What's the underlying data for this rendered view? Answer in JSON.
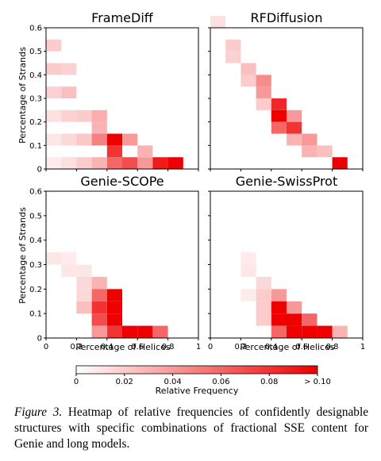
{
  "chart_data": {
    "type": "heatmap",
    "panels": [
      {
        "title": "FrameDiff",
        "cells": [
          {
            "x": 0.0,
            "y": 0.5,
            "v": 0.02
          },
          {
            "x": 0.0,
            "y": 0.4,
            "v": 0.02
          },
          {
            "x": 0.1,
            "y": 0.4,
            "v": 0.018
          },
          {
            "x": 0.0,
            "y": 0.3,
            "v": 0.018
          },
          {
            "x": 0.1,
            "y": 0.3,
            "v": 0.025
          },
          {
            "x": 0.0,
            "y": 0.2,
            "v": 0.012
          },
          {
            "x": 0.1,
            "y": 0.2,
            "v": 0.018
          },
          {
            "x": 0.2,
            "y": 0.2,
            "v": 0.02
          },
          {
            "x": 0.3,
            "y": 0.2,
            "v": 0.032
          },
          {
            "x": 0.0,
            "y": 0.1,
            "v": 0.01
          },
          {
            "x": 0.1,
            "y": 0.1,
            "v": 0.015
          },
          {
            "x": 0.2,
            "y": 0.1,
            "v": 0.022
          },
          {
            "x": 0.3,
            "y": 0.1,
            "v": 0.05
          },
          {
            "x": 0.4,
            "y": 0.1,
            "v": 0.1
          },
          {
            "x": 0.5,
            "y": 0.1,
            "v": 0.04
          },
          {
            "x": 0.0,
            "y": 0.0,
            "v": 0.008
          },
          {
            "x": 0.1,
            "y": 0.0,
            "v": 0.012
          },
          {
            "x": 0.2,
            "y": 0.0,
            "v": 0.02
          },
          {
            "x": 0.3,
            "y": 0.0,
            "v": 0.03
          },
          {
            "x": 0.4,
            "y": 0.0,
            "v": 0.06
          },
          {
            "x": 0.5,
            "y": 0.0,
            "v": 0.07
          },
          {
            "x": 0.6,
            "y": 0.0,
            "v": 0.04
          },
          {
            "x": 0.3,
            "y": 0.15,
            "v": 0.03
          },
          {
            "x": 0.4,
            "y": 0.05,
            "v": 0.08
          },
          {
            "x": 0.6,
            "y": 0.05,
            "v": 0.03
          },
          {
            "x": 0.7,
            "y": 0.0,
            "v": 0.09
          },
          {
            "x": 0.8,
            "y": 0.0,
            "v": 0.1
          }
        ]
      },
      {
        "title": "RFDiffusion",
        "cells": [
          {
            "x": 0.0,
            "y": 0.6,
            "v": 0.012
          },
          {
            "x": 0.1,
            "y": 0.5,
            "v": 0.02
          },
          {
            "x": 0.1,
            "y": 0.45,
            "v": 0.018
          },
          {
            "x": 0.2,
            "y": 0.4,
            "v": 0.025
          },
          {
            "x": 0.2,
            "y": 0.35,
            "v": 0.02
          },
          {
            "x": 0.3,
            "y": 0.35,
            "v": 0.045
          },
          {
            "x": 0.3,
            "y": 0.3,
            "v": 0.04
          },
          {
            "x": 0.3,
            "y": 0.25,
            "v": 0.02
          },
          {
            "x": 0.4,
            "y": 0.25,
            "v": 0.085
          },
          {
            "x": 0.4,
            "y": 0.2,
            "v": 0.1
          },
          {
            "x": 0.4,
            "y": 0.15,
            "v": 0.06
          },
          {
            "x": 0.5,
            "y": 0.2,
            "v": 0.04
          },
          {
            "x": 0.5,
            "y": 0.15,
            "v": 0.08
          },
          {
            "x": 0.5,
            "y": 0.1,
            "v": 0.03
          },
          {
            "x": 0.6,
            "y": 0.1,
            "v": 0.04
          },
          {
            "x": 0.6,
            "y": 0.05,
            "v": 0.03
          },
          {
            "x": 0.7,
            "y": 0.05,
            "v": 0.025
          },
          {
            "x": 0.8,
            "y": 0.0,
            "v": 0.1
          }
        ]
      },
      {
        "title": "Genie-SCOPe",
        "cells": [
          {
            "x": 0.0,
            "y": 0.3,
            "v": 0.01
          },
          {
            "x": 0.1,
            "y": 0.3,
            "v": 0.008
          },
          {
            "x": 0.1,
            "y": 0.25,
            "v": 0.01
          },
          {
            "x": 0.2,
            "y": 0.25,
            "v": 0.01
          },
          {
            "x": 0.2,
            "y": 0.2,
            "v": 0.015
          },
          {
            "x": 0.3,
            "y": 0.2,
            "v": 0.03
          },
          {
            "x": 0.3,
            "y": 0.15,
            "v": 0.06
          },
          {
            "x": 0.3,
            "y": 0.1,
            "v": 0.08
          },
          {
            "x": 0.3,
            "y": 0.05,
            "v": 0.07
          },
          {
            "x": 0.4,
            "y": 0.15,
            "v": 0.1
          },
          {
            "x": 0.4,
            "y": 0.1,
            "v": 0.1
          },
          {
            "x": 0.4,
            "y": 0.05,
            "v": 0.1
          },
          {
            "x": 0.4,
            "y": 0.0,
            "v": 0.08
          },
          {
            "x": 0.3,
            "y": 0.0,
            "v": 0.04
          },
          {
            "x": 0.5,
            "y": 0.0,
            "v": 0.1
          },
          {
            "x": 0.6,
            "y": 0.0,
            "v": 0.1
          },
          {
            "x": 0.7,
            "y": 0.0,
            "v": 0.06
          },
          {
            "x": 0.2,
            "y": 0.1,
            "v": 0.025
          },
          {
            "x": 0.2,
            "y": 0.15,
            "v": 0.015
          }
        ]
      },
      {
        "title": "Genie-SwissProt",
        "cells": [
          {
            "x": 0.2,
            "y": 0.3,
            "v": 0.008
          },
          {
            "x": 0.2,
            "y": 0.25,
            "v": 0.01
          },
          {
            "x": 0.2,
            "y": 0.15,
            "v": 0.008
          },
          {
            "x": 0.3,
            "y": 0.2,
            "v": 0.015
          },
          {
            "x": 0.3,
            "y": 0.15,
            "v": 0.02
          },
          {
            "x": 0.3,
            "y": 0.1,
            "v": 0.02
          },
          {
            "x": 0.4,
            "y": 0.15,
            "v": 0.04
          },
          {
            "x": 0.4,
            "y": 0.1,
            "v": 0.1
          },
          {
            "x": 0.4,
            "y": 0.05,
            "v": 0.1
          },
          {
            "x": 0.4,
            "y": 0.0,
            "v": 0.06
          },
          {
            "x": 0.5,
            "y": 0.05,
            "v": 0.1
          },
          {
            "x": 0.5,
            "y": 0.0,
            "v": 0.1
          },
          {
            "x": 0.5,
            "y": 0.1,
            "v": 0.04
          },
          {
            "x": 0.6,
            "y": 0.0,
            "v": 0.1
          },
          {
            "x": 0.6,
            "y": 0.05,
            "v": 0.06
          },
          {
            "x": 0.7,
            "y": 0.0,
            "v": 0.1
          },
          {
            "x": 0.8,
            "y": 0.0,
            "v": 0.03
          },
          {
            "x": 0.3,
            "y": 0.05,
            "v": 0.02
          }
        ]
      }
    ],
    "x_ticks": [
      "0",
      "0.2",
      "0.4",
      "0.6",
      "0.8",
      "1"
    ],
    "y_ticks": [
      "0",
      "0.1",
      "0.2",
      "0.3",
      "0.4",
      "0.5",
      "0.6"
    ],
    "xlabel": "Percentage of Helices",
    "ylabel": "Percentage of Strands",
    "xlim": [
      0,
      1
    ],
    "ylim": [
      0,
      0.6
    ],
    "cell_size_x": 0.1,
    "cell_size_y": 0.05,
    "colorbar": {
      "label": "Relative Frequency",
      "ticks": [
        "0",
        "0.02",
        "0.04",
        "0.06",
        "0.08",
        "> 0.10"
      ],
      "range": [
        0,
        0.1
      ],
      "color_low": "#ffffff",
      "color_high": "#ee0000"
    }
  },
  "caption": {
    "label": "Figure 3.",
    "text": "Heatmap of relative frequencies of confidently designable structures with specific combinations of fractional SSE content for Genie and long models."
  }
}
